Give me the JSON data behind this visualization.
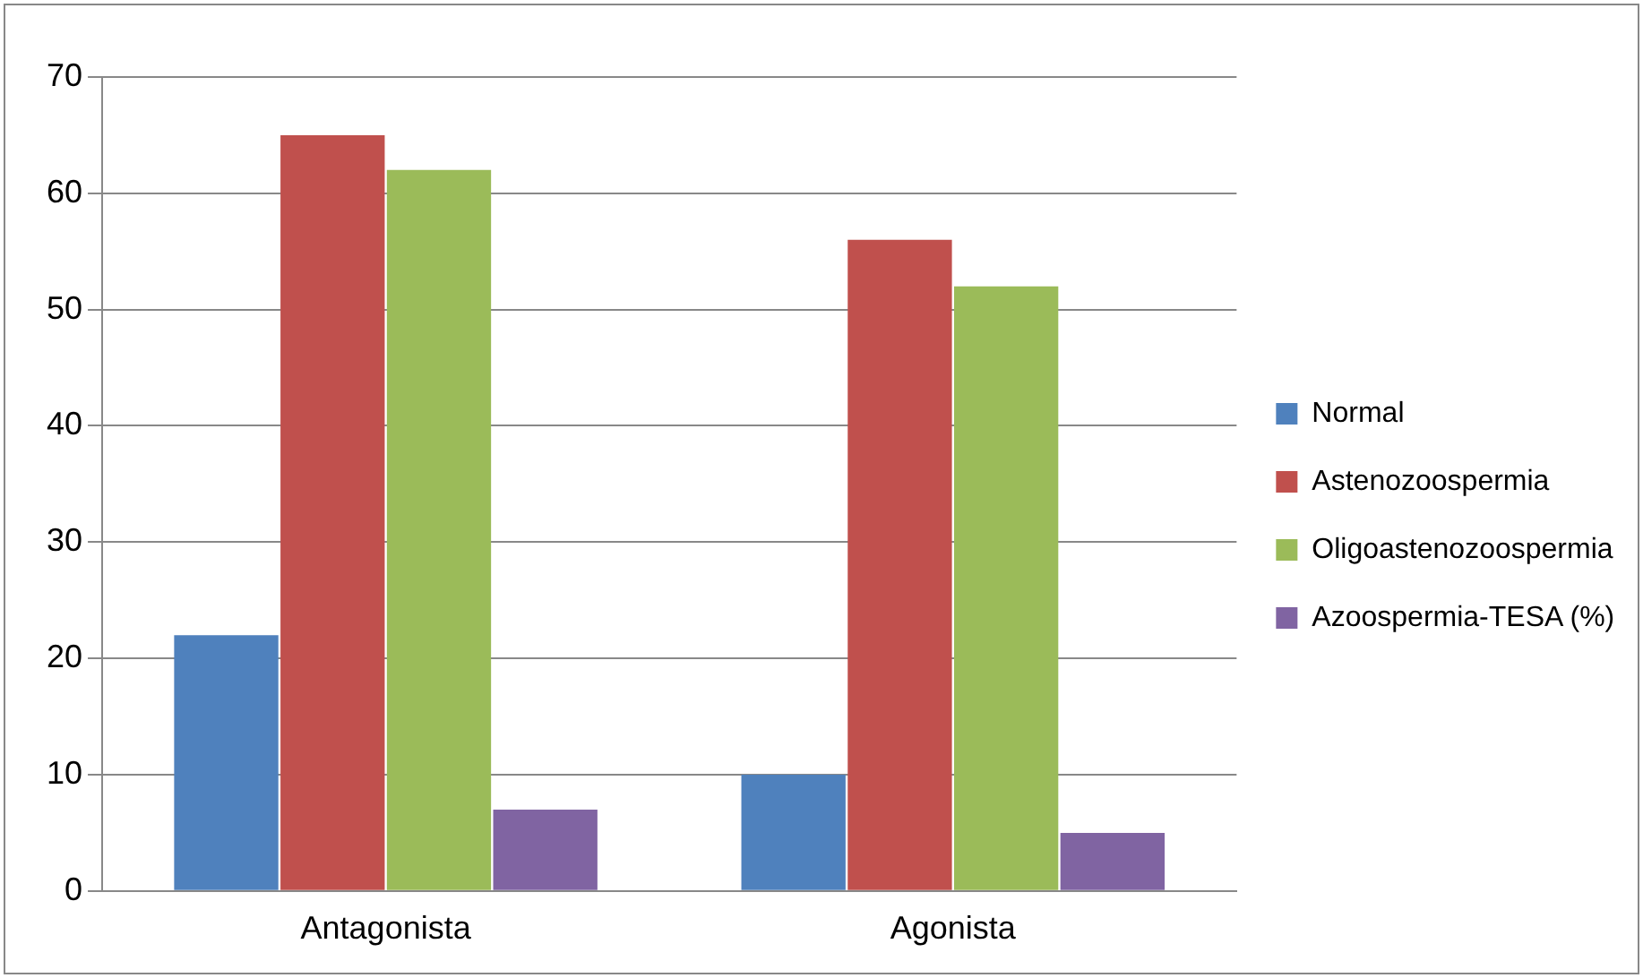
{
  "chart_data": {
    "type": "bar",
    "categories": [
      "Antagonista",
      "Agonista"
    ],
    "series": [
      {
        "name": "Normal",
        "color": "#4f81bd",
        "values": [
          22,
          10
        ]
      },
      {
        "name": "Astenozoospermia",
        "color": "#c0504d",
        "values": [
          65,
          56
        ]
      },
      {
        "name": "Oligoastenozoospermia",
        "color": "#9bbb59",
        "values": [
          62,
          52
        ]
      },
      {
        "name": "Azoospermia-TESA (%)",
        "color": "#8064a2",
        "values": [
          7,
          5
        ]
      }
    ],
    "ylim": [
      0,
      70
    ],
    "yticks": [
      0,
      10,
      20,
      30,
      40,
      50,
      60,
      70
    ],
    "grid": "y",
    "legend": "right"
  }
}
